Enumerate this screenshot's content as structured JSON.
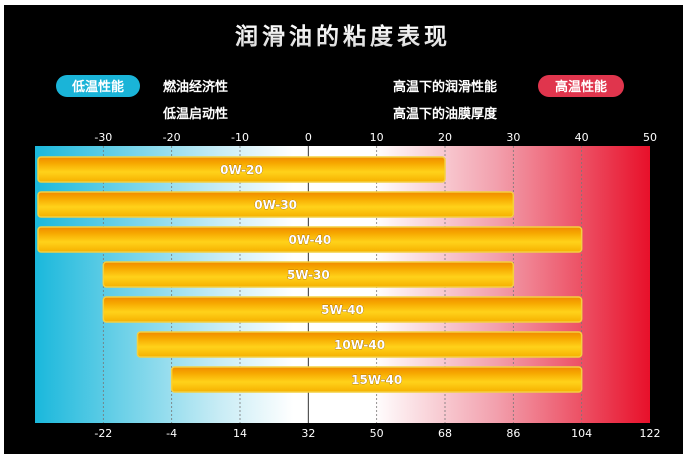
{
  "chart_data": {
    "type": "bar",
    "orientation": "horizontal-range",
    "title": "润滑油的粘度表现",
    "legend": {
      "low_temp": {
        "badge": "低温性能",
        "items": [
          "燃油经济性",
          "低温启动性"
        ],
        "color": "#1ab4d8"
      },
      "high_temp": {
        "badge": "高温性能",
        "items": [
          "高温下的润滑性能",
          "高温下的油膜厚度"
        ],
        "color": "#e0354d"
      }
    },
    "x_top": {
      "unit": "°C",
      "ticks": [
        -30,
        -20,
        -10,
        0,
        10,
        20,
        30,
        40,
        50
      ]
    },
    "x_bottom": {
      "unit": "°F",
      "ticks": [
        -22,
        -4,
        14,
        32,
        50,
        68,
        86,
        104,
        122
      ]
    },
    "xlim": [
      -40,
      50
    ],
    "grid": true,
    "background_gradient": [
      "#1ab8dc",
      "#ffffff",
      "#ffffff",
      "#e8102a"
    ],
    "bar_color": "#f7b500",
    "categories": [
      "0W-20",
      "0W-30",
      "0W-40",
      "5W-30",
      "5W-40",
      "10W-40",
      "15W-40"
    ],
    "ranges": [
      [
        -40,
        20
      ],
      [
        -40,
        30
      ],
      [
        -40,
        40
      ],
      [
        -30,
        30
      ],
      [
        -30,
        40
      ],
      [
        -25,
        40
      ],
      [
        -20,
        40
      ]
    ]
  }
}
